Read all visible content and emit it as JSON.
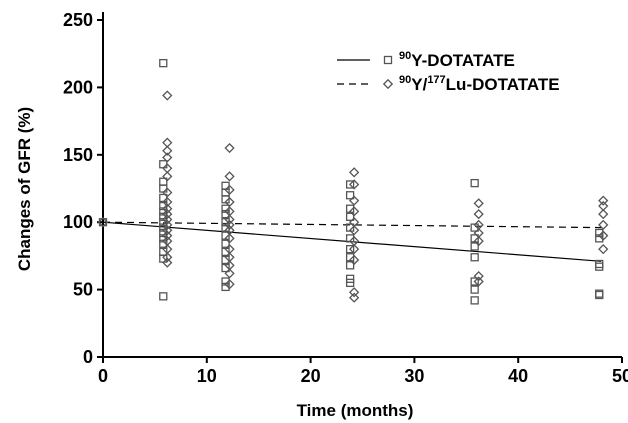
{
  "chart_data": {
    "type": "scatter",
    "xlabel": "Time (months)",
    "ylabel": "Changes of GFR (%)",
    "xlim": [
      0,
      50
    ],
    "ylim": [
      0,
      250
    ],
    "xticks": [
      "0",
      "10",
      "20",
      "30",
      "40",
      "50"
    ],
    "yticks": [
      "0",
      "50",
      "100",
      "150",
      "200",
      "250"
    ],
    "grid": false,
    "legend_position": "top-right",
    "series": [
      {
        "name": "90Y-DOTATATE",
        "name_parts": {
          "isotope1": "90",
          "rest": "Y-DOTATATE"
        },
        "marker": "square",
        "line_style": "solid",
        "regression": {
          "x": [
            0,
            48
          ],
          "y": [
            100,
            71
          ]
        },
        "points": [
          {
            "x": 0,
            "y": 100
          },
          {
            "x": 6,
            "y": 218
          },
          {
            "x": 6,
            "y": 143
          },
          {
            "x": 6,
            "y": 130
          },
          {
            "x": 6,
            "y": 125
          },
          {
            "x": 6,
            "y": 118
          },
          {
            "x": 6,
            "y": 112
          },
          {
            "x": 6,
            "y": 108
          },
          {
            "x": 6,
            "y": 104
          },
          {
            "x": 6,
            "y": 100
          },
          {
            "x": 6,
            "y": 96
          },
          {
            "x": 6,
            "y": 92
          },
          {
            "x": 6,
            "y": 88
          },
          {
            "x": 6,
            "y": 84
          },
          {
            "x": 6,
            "y": 78
          },
          {
            "x": 6,
            "y": 73
          },
          {
            "x": 6,
            "y": 45
          },
          {
            "x": 12,
            "y": 127
          },
          {
            "x": 12,
            "y": 122
          },
          {
            "x": 12,
            "y": 117
          },
          {
            "x": 12,
            "y": 110
          },
          {
            "x": 12,
            "y": 106
          },
          {
            "x": 12,
            "y": 100
          },
          {
            "x": 12,
            "y": 96
          },
          {
            "x": 12,
            "y": 90
          },
          {
            "x": 12,
            "y": 84
          },
          {
            "x": 12,
            "y": 78
          },
          {
            "x": 12,
            "y": 72
          },
          {
            "x": 12,
            "y": 66
          },
          {
            "x": 12,
            "y": 56
          },
          {
            "x": 12,
            "y": 52
          },
          {
            "x": 24,
            "y": 128
          },
          {
            "x": 24,
            "y": 120
          },
          {
            "x": 24,
            "y": 110
          },
          {
            "x": 24,
            "y": 104
          },
          {
            "x": 24,
            "y": 96
          },
          {
            "x": 24,
            "y": 88
          },
          {
            "x": 24,
            "y": 80
          },
          {
            "x": 24,
            "y": 74
          },
          {
            "x": 24,
            "y": 68
          },
          {
            "x": 24,
            "y": 58
          },
          {
            "x": 24,
            "y": 55
          },
          {
            "x": 36,
            "y": 129
          },
          {
            "x": 36,
            "y": 96
          },
          {
            "x": 36,
            "y": 88
          },
          {
            "x": 36,
            "y": 82
          },
          {
            "x": 36,
            "y": 74
          },
          {
            "x": 36,
            "y": 56
          },
          {
            "x": 36,
            "y": 50
          },
          {
            "x": 36,
            "y": 42
          },
          {
            "x": 48,
            "y": 92
          },
          {
            "x": 48,
            "y": 88
          },
          {
            "x": 48,
            "y": 69
          },
          {
            "x": 48,
            "y": 67
          },
          {
            "x": 48,
            "y": 47
          },
          {
            "x": 48,
            "y": 46
          }
        ]
      },
      {
        "name": "90Y/177Lu-DOTATATE",
        "name_parts": {
          "isotope1": "90",
          "mid": "Y/",
          "isotope2": "177",
          "rest": "Lu-DOTATATE"
        },
        "marker": "diamond",
        "line_style": "dashed",
        "regression": {
          "x": [
            0,
            48
          ],
          "y": [
            100,
            96
          ]
        },
        "points": [
          {
            "x": 0,
            "y": 100
          },
          {
            "x": 6,
            "y": 194
          },
          {
            "x": 6,
            "y": 159
          },
          {
            "x": 6,
            "y": 153
          },
          {
            "x": 6,
            "y": 148
          },
          {
            "x": 6,
            "y": 140
          },
          {
            "x": 6,
            "y": 134
          },
          {
            "x": 6,
            "y": 122
          },
          {
            "x": 6,
            "y": 115
          },
          {
            "x": 6,
            "y": 110
          },
          {
            "x": 6,
            "y": 106
          },
          {
            "x": 6,
            "y": 102
          },
          {
            "x": 6,
            "y": 98
          },
          {
            "x": 6,
            "y": 94
          },
          {
            "x": 6,
            "y": 90
          },
          {
            "x": 6,
            "y": 86
          },
          {
            "x": 6,
            "y": 80
          },
          {
            "x": 6,
            "y": 74
          },
          {
            "x": 6,
            "y": 70
          },
          {
            "x": 12,
            "y": 155
          },
          {
            "x": 12,
            "y": 134
          },
          {
            "x": 12,
            "y": 124
          },
          {
            "x": 12,
            "y": 115
          },
          {
            "x": 12,
            "y": 108
          },
          {
            "x": 12,
            "y": 102
          },
          {
            "x": 12,
            "y": 98
          },
          {
            "x": 12,
            "y": 94
          },
          {
            "x": 12,
            "y": 88
          },
          {
            "x": 12,
            "y": 80
          },
          {
            "x": 12,
            "y": 74
          },
          {
            "x": 12,
            "y": 68
          },
          {
            "x": 12,
            "y": 62
          },
          {
            "x": 12,
            "y": 54
          },
          {
            "x": 24,
            "y": 137
          },
          {
            "x": 24,
            "y": 128
          },
          {
            "x": 24,
            "y": 116
          },
          {
            "x": 24,
            "y": 108
          },
          {
            "x": 24,
            "y": 100
          },
          {
            "x": 24,
            "y": 94
          },
          {
            "x": 24,
            "y": 86
          },
          {
            "x": 24,
            "y": 80
          },
          {
            "x": 24,
            "y": 72
          },
          {
            "x": 24,
            "y": 48
          },
          {
            "x": 24,
            "y": 44
          },
          {
            "x": 36,
            "y": 114
          },
          {
            "x": 36,
            "y": 106
          },
          {
            "x": 36,
            "y": 98
          },
          {
            "x": 36,
            "y": 92
          },
          {
            "x": 36,
            "y": 86
          },
          {
            "x": 36,
            "y": 60
          },
          {
            "x": 36,
            "y": 56
          },
          {
            "x": 48,
            "y": 116
          },
          {
            "x": 48,
            "y": 112
          },
          {
            "x": 48,
            "y": 106
          },
          {
            "x": 48,
            "y": 98
          },
          {
            "x": 48,
            "y": 90
          },
          {
            "x": 48,
            "y": 80
          }
        ]
      }
    ]
  }
}
